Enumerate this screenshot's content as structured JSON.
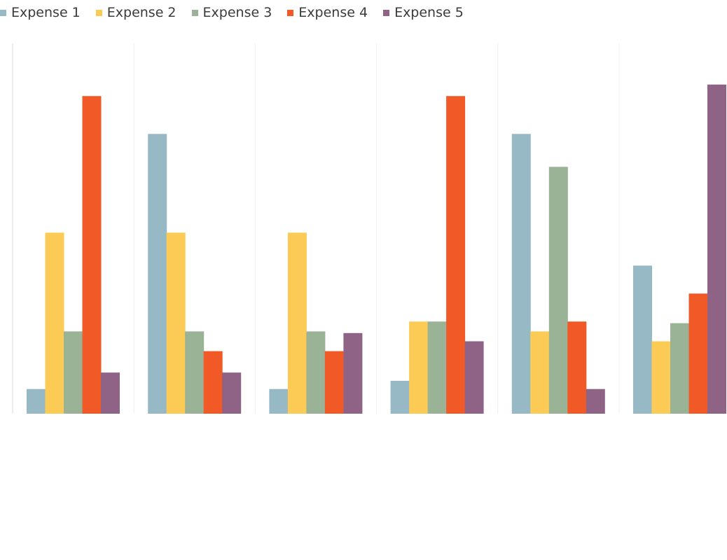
{
  "chart_data": {
    "type": "bar",
    "categories": [
      "",
      "",
      "",
      "",
      "",
      ""
    ],
    "series": [
      {
        "name": "Expense 1",
        "color": "#97B9C6",
        "values": [
          1.5,
          17,
          1.5,
          2,
          17,
          9
        ]
      },
      {
        "name": "Expense 2",
        "color": "#FCCB55",
        "values": [
          11,
          11,
          11,
          5.6,
          5,
          4.4
        ]
      },
      {
        "name": "Expense 3",
        "color": "#9AB296",
        "values": [
          5,
          5,
          5,
          5.6,
          15,
          5.5
        ]
      },
      {
        "name": "Expense 4",
        "color": "#F15A27",
        "values": [
          19.3,
          3.8,
          3.8,
          19.3,
          5.6,
          7.3
        ]
      },
      {
        "name": "Expense 5",
        "color": "#8F6386",
        "values": [
          2.5,
          2.5,
          4.9,
          4.4,
          1.5,
          20
        ]
      }
    ],
    "title": "",
    "xlabel": "",
    "ylabel": "",
    "ylim": [
      0,
      22.5
    ],
    "grid": true,
    "legend_position": "top-left"
  }
}
